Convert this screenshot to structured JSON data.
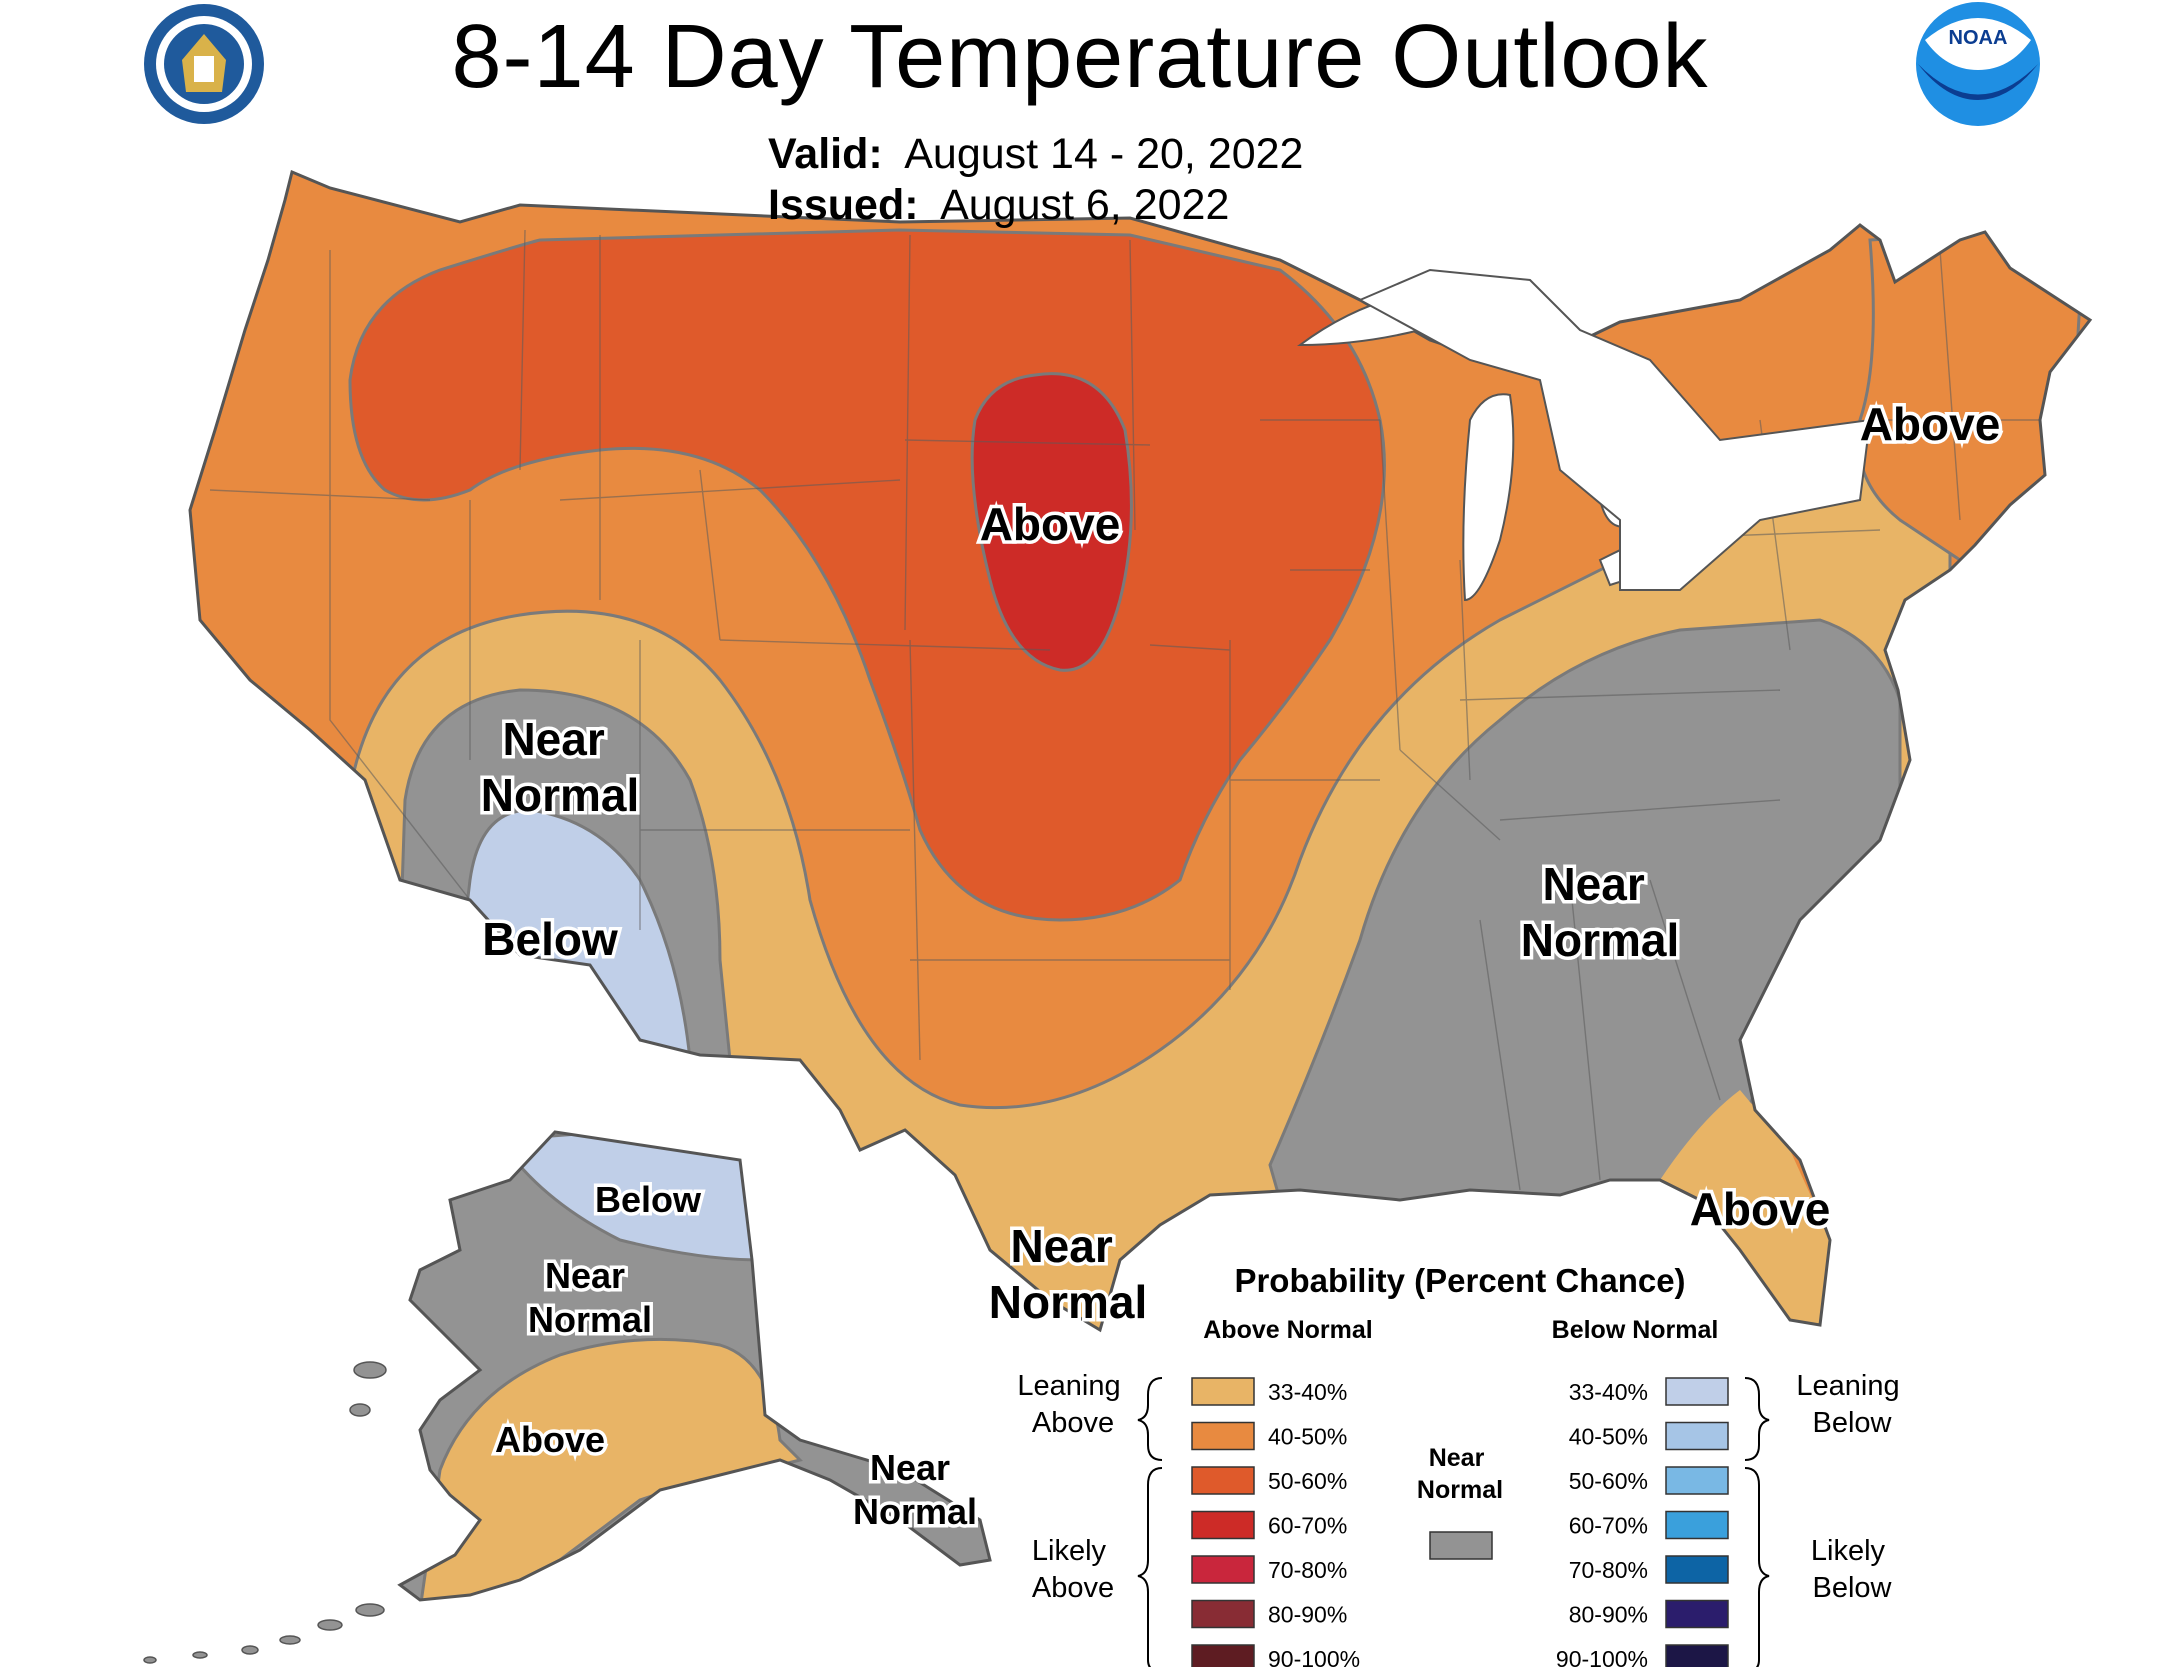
{
  "title": "8-14 Day Temperature Outlook",
  "valid_label": "Valid:",
  "valid_value": "August 14 - 20, 2022",
  "issued_label": "Issued:",
  "issued_value": "August 6, 2022",
  "map_labels": {
    "above_north_plains": "Above",
    "above_northeast": "Above",
    "above_florida": "Above",
    "near_normal_southwest": [
      "Near",
      "Normal"
    ],
    "below_southwest": "Below",
    "near_normal_southeast": [
      "Near",
      "Normal"
    ],
    "near_normal_texas": [
      "Near",
      "Normal"
    ],
    "alaska_below": "Below",
    "alaska_near_normal": [
      "Near",
      "Normal"
    ],
    "alaska_above": "Above",
    "alaska_panhandle_near_normal": [
      "Near",
      "Normal"
    ]
  },
  "legend": {
    "title": "Probability (Percent Chance)",
    "above_header": "Above Normal",
    "below_header": "Below Normal",
    "near_normal_label": [
      "Near",
      "Normal"
    ],
    "leaning_above": [
      "Leaning",
      "Above"
    ],
    "likely_above": [
      "Likely",
      "Above"
    ],
    "leaning_below": [
      "Leaning",
      "Below"
    ],
    "likely_below": [
      "Likely",
      "Below"
    ],
    "above_bins": [
      {
        "range": "33-40%",
        "color": "#e8b466"
      },
      {
        "range": "40-50%",
        "color": "#e88a40"
      },
      {
        "range": "50-60%",
        "color": "#df5a2b"
      },
      {
        "range": "60-70%",
        "color": "#cd2b27"
      },
      {
        "range": "70-80%",
        "color": "#c9263c"
      },
      {
        "range": "80-90%",
        "color": "#882c34"
      },
      {
        "range": "90-100%",
        "color": "#5e1c22"
      }
    ],
    "below_bins": [
      {
        "range": "33-40%",
        "color": "#c0cfe8"
      },
      {
        "range": "40-50%",
        "color": "#a6c5e6"
      },
      {
        "range": "50-60%",
        "color": "#79b8e4"
      },
      {
        "range": "60-70%",
        "color": "#3aa0dc"
      },
      {
        "range": "70-80%",
        "color": "#0d64a5"
      },
      {
        "range": "80-90%",
        "color": "#2b1d6c"
      },
      {
        "range": "90-100%",
        "color": "#1c1646"
      }
    ],
    "near_normal_color": "#939393"
  },
  "logos": {
    "left": "department-of-commerce-seal",
    "right": "noaa-logo",
    "noaa_text": "NOAA"
  }
}
